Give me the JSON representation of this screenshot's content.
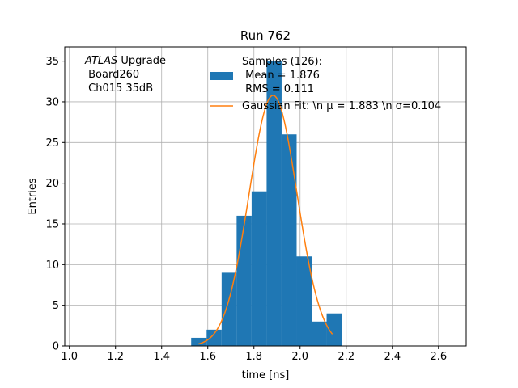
{
  "chart_data": {
    "type": "bar",
    "title": "Run 762",
    "xlabel": "time [ns]",
    "ylabel": "Entries",
    "xlim": [
      0.98,
      2.72
    ],
    "ylim": [
      0,
      36.75
    ],
    "xticks": [
      1.0,
      1.2,
      1.4,
      1.6,
      1.8,
      2.0,
      2.2,
      2.4,
      2.6
    ],
    "xtick_labels": [
      "1.0",
      "1.2",
      "1.4",
      "1.6",
      "1.8",
      "2.0",
      "2.2",
      "2.4",
      "2.6"
    ],
    "yticks": [
      0,
      5,
      10,
      15,
      20,
      25,
      30,
      35
    ],
    "ytick_labels": [
      "0",
      "5",
      "10",
      "15",
      "20",
      "25",
      "30",
      "35"
    ],
    "grid": true,
    "bar_color": "#1f77b4",
    "fit_color": "#ff7f0e",
    "bins": [
      {
        "x0": 1.528,
        "x1": 1.595,
        "count": 1
      },
      {
        "x0": 1.595,
        "x1": 1.66,
        "count": 2
      },
      {
        "x0": 1.66,
        "x1": 1.725,
        "count": 9
      },
      {
        "x0": 1.725,
        "x1": 1.79,
        "count": 16
      },
      {
        "x0": 1.79,
        "x1": 1.855,
        "count": 19
      },
      {
        "x0": 1.855,
        "x1": 1.92,
        "count": 35
      },
      {
        "x0": 1.92,
        "x1": 1.985,
        "count": 26
      },
      {
        "x0": 1.985,
        "x1": 2.05,
        "count": 11
      },
      {
        "x0": 2.05,
        "x1": 2.115,
        "count": 3
      },
      {
        "x0": 2.115,
        "x1": 2.18,
        "count": 4
      }
    ],
    "fit": {
      "mu": 1.883,
      "sigma": 0.104,
      "amplitude": 30.8,
      "x_range": [
        1.56,
        2.14
      ]
    },
    "annotation": {
      "italic": "ATLAS",
      "line1_rest": " Upgrade",
      "line2": " Board260",
      "line3": " Ch015 35dB"
    },
    "legend": {
      "placement": "top-center",
      "hist_lines": [
        "Samples (126):",
        " Mean = 1.876",
        " RMS = 0.111"
      ],
      "fit_label": "Gaussian Fit: \\n μ = 1.883 \\n σ=0.104"
    }
  }
}
